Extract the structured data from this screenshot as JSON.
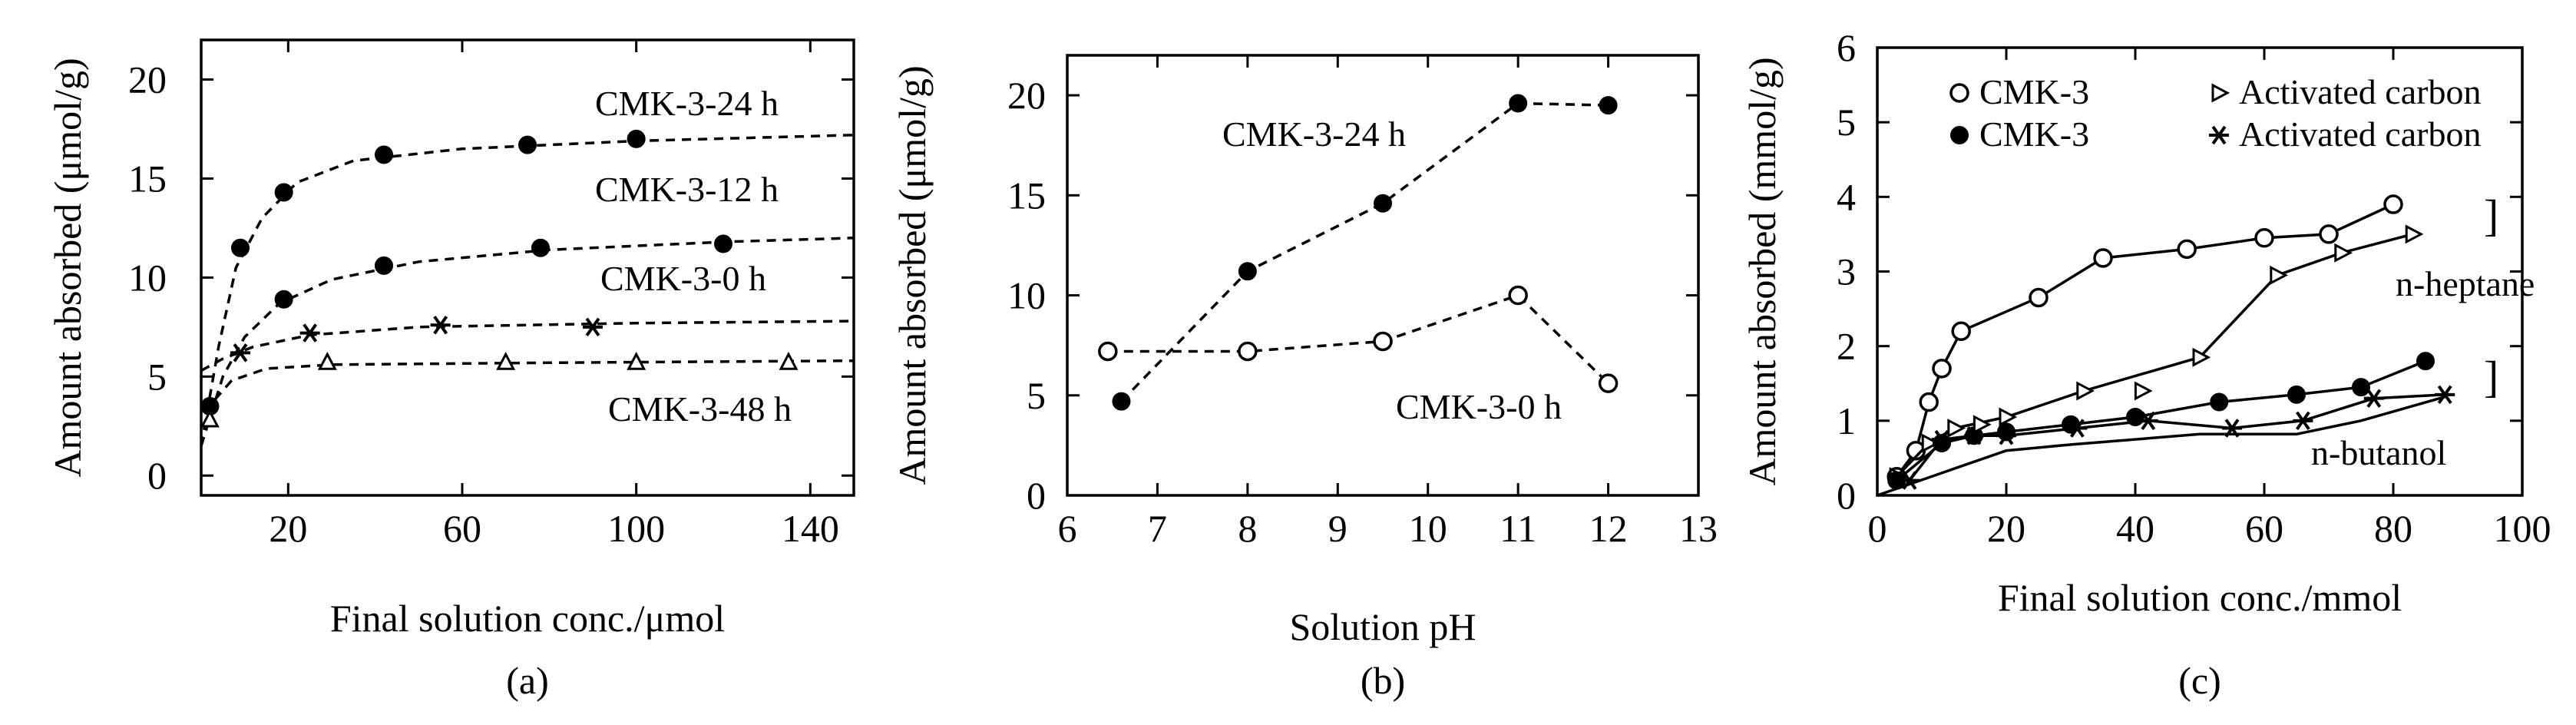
{
  "chart_data": [
    {
      "type": "scatter",
      "panel_label": "(a)",
      "xlabel": "Final solution conc./μmol",
      "ylabel": "Amount absorbed (μmol/g)",
      "xlim": [
        0,
        150
      ],
      "ylim": [
        -1,
        22
      ],
      "xticks": [
        20,
        60,
        100,
        140
      ],
      "xtick_labels": [
        "20",
        "60",
        "100",
        "140"
      ],
      "yticks": [
        0,
        5,
        10,
        15,
        20
      ],
      "ytick_labels": [
        "0",
        "5",
        "10",
        "15",
        "20"
      ],
      "grid": false,
      "series": [
        {
          "label": "CMK-3-24 h",
          "marker": "filled-circle",
          "points": [
            [
              2,
              3.5
            ],
            [
              9,
              11.5
            ],
            [
              19,
              14.3
            ],
            [
              42,
              16.2
            ],
            [
              75,
              16.7
            ],
            [
              100,
              17.0
            ]
          ],
          "fit": [
            [
              0,
              1.5
            ],
            [
              4,
              6.5
            ],
            [
              8,
              10.5
            ],
            [
              14,
              13.0
            ],
            [
              22,
              14.8
            ],
            [
              35,
              15.9
            ],
            [
              60,
              16.5
            ],
            [
              100,
              16.9
            ],
            [
              150,
              17.2
            ]
          ]
        },
        {
          "label": "CMK-3-12 h",
          "marker": "filled-circle",
          "points": [
            [
              2,
              3.5
            ],
            [
              19,
              8.9
            ],
            [
              42,
              10.6
            ],
            [
              78,
              11.5
            ],
            [
              120,
              11.7
            ]
          ],
          "fit": [
            [
              0,
              1.5
            ],
            [
              5,
              5.0
            ],
            [
              10,
              7.0
            ],
            [
              18,
              8.7
            ],
            [
              30,
              9.9
            ],
            [
              50,
              10.8
            ],
            [
              80,
              11.4
            ],
            [
              120,
              11.8
            ],
            [
              150,
              12.0
            ]
          ]
        },
        {
          "label": "CMK-3-0 h",
          "marker": "star",
          "points": [
            [
              9,
              6.2
            ],
            [
              25,
              7.2
            ],
            [
              55,
              7.6
            ],
            [
              90,
              7.5
            ]
          ],
          "fit": [
            [
              0,
              5.3
            ],
            [
              5,
              5.9
            ],
            [
              12,
              6.5
            ],
            [
              25,
              7.1
            ],
            [
              50,
              7.5
            ],
            [
              100,
              7.7
            ],
            [
              150,
              7.8
            ]
          ]
        },
        {
          "label": "CMK-3-48 h",
          "marker": "open-triangle",
          "points": [
            [
              2,
              2.8
            ],
            [
              29,
              5.7
            ],
            [
              70,
              5.7
            ],
            [
              100,
              5.7
            ],
            [
              135,
              5.7
            ]
          ],
          "fit": [
            [
              0,
              1.5
            ],
            [
              3,
              3.8
            ],
            [
              7,
              4.8
            ],
            [
              15,
              5.4
            ],
            [
              30,
              5.6
            ],
            [
              80,
              5.7
            ],
            [
              150,
              5.8
            ]
          ]
        }
      ],
      "annotations": [
        "CMK-3-24 h",
        "CMK-3-12 h",
        "CMK-3-0 h",
        "CMK-3-48 h"
      ]
    },
    {
      "type": "line",
      "panel_label": "(b)",
      "xlabel": "Solution pH",
      "ylabel": "Amount absorbed (μmol/g)",
      "xlim": [
        6,
        13
      ],
      "ylim": [
        0,
        22
      ],
      "xticks": [
        6,
        7,
        8,
        9,
        10,
        11,
        12,
        13
      ],
      "xtick_labels": [
        "6",
        "7",
        "8",
        "9",
        "10",
        "11",
        "12",
        "13"
      ],
      "yticks": [
        0,
        5,
        10,
        15,
        20
      ],
      "ytick_labels": [
        "0",
        "5",
        "10",
        "15",
        "20"
      ],
      "grid": false,
      "series": [
        {
          "label": "CMK-3-24 h",
          "marker": "filled-circle",
          "line": "dashed",
          "points": [
            [
              6.6,
              4.7
            ],
            [
              8,
              11.2
            ],
            [
              9.5,
              14.6
            ],
            [
              11,
              19.6
            ],
            [
              12,
              19.5
            ]
          ]
        },
        {
          "label": "CMK-3-0 h",
          "marker": "open-circle",
          "line": "dashed",
          "points": [
            [
              6.45,
              7.2
            ],
            [
              8,
              7.2
            ],
            [
              9.5,
              7.7
            ],
            [
              11,
              10.0
            ],
            [
              12,
              5.6
            ]
          ]
        }
      ],
      "annotations": [
        "CMK-3-24 h",
        "CMK-3-0 h"
      ]
    },
    {
      "type": "line",
      "panel_label": "(c)",
      "xlabel": "Final solution conc./mmol",
      "ylabel": "Amount absorbed (mmol/g)",
      "xlim": [
        0,
        100
      ],
      "ylim": [
        0,
        6
      ],
      "xticks": [
        0,
        20,
        40,
        60,
        80,
        100
      ],
      "xtick_labels": [
        "0",
        "20",
        "40",
        "60",
        "80",
        "100"
      ],
      "yticks": [
        0,
        1,
        2,
        3,
        4,
        5,
        6
      ],
      "ytick_labels": [
        "0",
        "1",
        "2",
        "3",
        "4",
        "5",
        "6"
      ],
      "grid": false,
      "legend": {
        "placement": "top",
        "entries": [
          {
            "marker": "open-circle",
            "label": "CMK-3"
          },
          {
            "marker": "open-triangle-right",
            "label": "Activated carbon"
          },
          {
            "marker": "filled-circle",
            "label": "CMK-3"
          },
          {
            "marker": "star",
            "label": "Activated carbon"
          }
        ]
      },
      "series": [
        {
          "legend_index": 0,
          "marker": "open-circle",
          "line": "solid",
          "points": [
            [
              3,
              0.25
            ],
            [
              6,
              0.6
            ],
            [
              8,
              1.25
            ],
            [
              10,
              1.7
            ],
            [
              13,
              2.2
            ],
            [
              25,
              2.65
            ],
            [
              35,
              3.18
            ],
            [
              48,
              3.3
            ],
            [
              60,
              3.45
            ],
            [
              70,
              3.5
            ],
            [
              80,
              3.9
            ]
          ]
        },
        {
          "legend_index": 1,
          "marker": "open-triangle-right",
          "line": "solid",
          "points": [
            [
              3,
              0.25
            ],
            [
              8,
              0.7
            ],
            [
              12,
              0.9
            ],
            [
              20,
              1.05
            ],
            [
              32,
              1.4
            ],
            [
              50,
              1.85
            ],
            [
              62,
              2.95
            ],
            [
              72,
              3.25
            ],
            [
              83,
              3.5
            ]
          ]
        },
        {
          "legend_index": 2,
          "marker": "filled-circle",
          "line": "solid",
          "points": [
            [
              3,
              0.2
            ],
            [
              10,
              0.7
            ],
            [
              15,
              0.8
            ],
            [
              20,
              0.85
            ],
            [
              30,
              0.95
            ],
            [
              40,
              1.05
            ],
            [
              53,
              1.25
            ],
            [
              65,
              1.35
            ],
            [
              75,
              1.45
            ],
            [
              85,
              1.8
            ]
          ]
        },
        {
          "legend_index": 3,
          "marker": "star",
          "line": "solid",
          "points": [
            [
              5,
              0.2
            ],
            [
              10,
              0.75
            ],
            [
              15,
              0.8
            ],
            [
              20,
              0.8
            ],
            [
              31,
              0.9
            ],
            [
              42,
              1.0
            ],
            [
              55,
              0.9
            ],
            [
              66,
              1.0
            ],
            [
              77,
              1.3
            ],
            [
              88,
              1.35
            ]
          ]
        },
        {
          "label": "n-heptane-lower-trace",
          "marker": "open-triangle-right",
          "line": "none",
          "points": [
            [
              16,
              0.95
            ],
            [
              41,
              1.4
            ]
          ]
        },
        {
          "label": "activated-carbon-lower-trace",
          "marker": "none",
          "line": "solid",
          "points": [
            [
              0,
              0
            ],
            [
              20,
              0.6
            ],
            [
              30,
              0.68
            ],
            [
              50,
              0.82
            ],
            [
              65,
              0.82
            ],
            [
              75,
              1.0
            ],
            [
              88,
              1.32
            ]
          ]
        }
      ],
      "annotations": [
        "]",
        "n-heptane",
        "]",
        "n-butanol"
      ]
    }
  ]
}
